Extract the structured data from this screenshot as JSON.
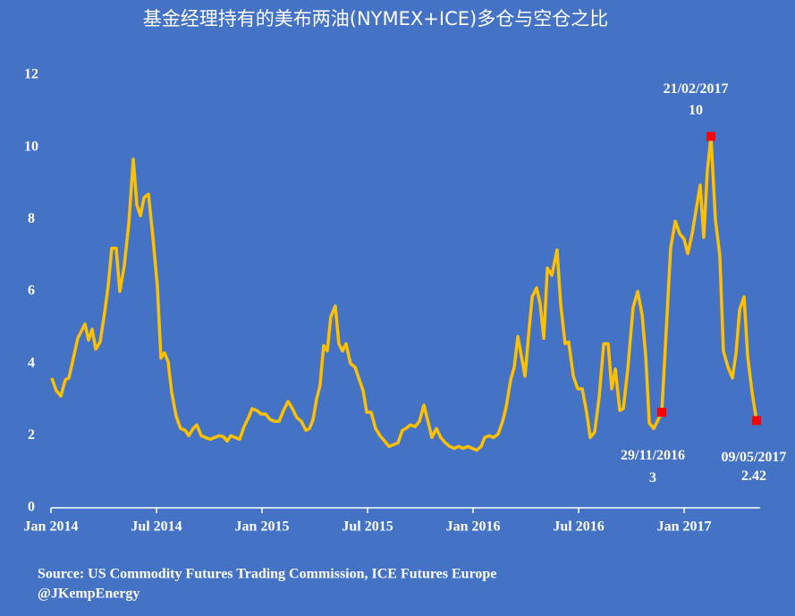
{
  "chart_data": {
    "type": "line",
    "title": "基金经理持有的美布两油(NYMEX+ICE)多仓与空仓之比",
    "source": [
      "Source: US Commodity Futures Trading Commission, ICE Futures Europe",
      "@JKempEnergy"
    ],
    "xlim": [
      2014,
      2017.36
    ],
    "xticks": [
      {
        "value": 2014,
        "label": "Jan 2014"
      },
      {
        "value": 2014.5,
        "label": "Jul 2014"
      },
      {
        "value": 2015,
        "label": "Jan 2015"
      },
      {
        "value": 2015.5,
        "label": "Jul 2015"
      },
      {
        "value": 2016,
        "label": "Jan 2016"
      },
      {
        "value": 2016.5,
        "label": "Jul 2016"
      },
      {
        "value": 2017,
        "label": "Jan 2017"
      }
    ],
    "ylim": [
      0,
      12
    ],
    "yticks": [
      0,
      2,
      4,
      6,
      8,
      10,
      12
    ],
    "series": [
      {
        "color": "#ffc000",
        "x": [
          2014.004,
          2014.025,
          2014.047,
          2014.068,
          2014.085,
          2014.106,
          2014.127,
          2014.144,
          2014.161,
          2014.178,
          2014.195,
          2014.212,
          2014.233,
          2014.254,
          2014.271,
          2014.288,
          2014.309,
          2014.326,
          2014.347,
          2014.369,
          2014.39,
          2014.407,
          2014.424,
          2014.441,
          2014.462,
          2014.483,
          2014.504,
          2014.521,
          2014.538,
          2014.555,
          2014.572,
          2014.593,
          2014.614,
          2014.636,
          2014.653,
          2014.674,
          2014.691,
          2014.712,
          2014.733,
          2014.754,
          2014.775,
          2014.797,
          2014.818,
          2014.835,
          2014.852,
          2014.873,
          2014.894,
          2014.915,
          2014.936,
          2014.953,
          2014.975,
          2014.996,
          2015.017,
          2015.038,
          2015.059,
          2015.081,
          2015.102,
          2015.123,
          2015.144,
          2015.165,
          2015.186,
          2015.208,
          2015.225,
          2015.242,
          2015.258,
          2015.275,
          2015.292,
          2015.309,
          2015.326,
          2015.347,
          2015.364,
          2015.381,
          2015.398,
          2015.419,
          2015.441,
          2015.458,
          2015.479,
          2015.496,
          2015.517,
          2015.538,
          2015.559,
          2015.581,
          2015.602,
          2015.623,
          2015.644,
          2015.665,
          2015.682,
          2015.703,
          2015.725,
          2015.746,
          2015.767,
          2015.784,
          2015.805,
          2015.826,
          2015.847,
          2015.869,
          2015.89,
          2015.911,
          2015.932,
          2015.953,
          2015.975,
          2015.996,
          2016.017,
          2016.038,
          2016.055,
          2016.076,
          2016.097,
          2016.119,
          2016.14,
          2016.157,
          2016.178,
          2016.195,
          2016.212,
          2016.229,
          2016.246,
          2016.263,
          2016.28,
          2016.301,
          2016.318,
          2016.335,
          2016.352,
          2016.373,
          2016.398,
          2016.415,
          2016.436,
          2016.453,
          2016.475,
          2016.496,
          2016.517,
          2016.538,
          2016.555,
          2016.576,
          2016.597,
          2016.619,
          2016.64,
          2016.657,
          2016.674,
          2016.695,
          2016.712,
          2016.733,
          2016.758,
          2016.78,
          2016.801,
          2016.818,
          2016.835,
          2016.856,
          2016.873,
          2016.894,
          2016.915,
          2016.936,
          2016.958,
          2016.979,
          2017.0,
          2017.017,
          2017.038,
          2017.059,
          2017.076,
          2017.093,
          2017.11,
          2017.127,
          2017.148,
          2017.169,
          2017.186,
          2017.208,
          2017.229,
          2017.246,
          2017.263,
          2017.284,
          2017.301,
          2017.322,
          2017.343
        ],
        "values": [
          3.6,
          3.25,
          3.1,
          3.55,
          3.6,
          4.15,
          4.7,
          4.9,
          5.1,
          4.65,
          4.95,
          4.4,
          4.6,
          5.4,
          6.15,
          7.2,
          7.2,
          6.0,
          6.7,
          7.9,
          9.67,
          8.4,
          8.1,
          8.6,
          8.7,
          7.5,
          6.15,
          4.15,
          4.3,
          4.05,
          3.2,
          2.55,
          2.2,
          2.15,
          2.0,
          2.2,
          2.3,
          2.0,
          1.95,
          1.9,
          1.95,
          2.0,
          1.97,
          1.85,
          2.0,
          1.95,
          1.9,
          2.25,
          2.5,
          2.75,
          2.7,
          2.6,
          2.6,
          2.45,
          2.4,
          2.4,
          2.7,
          2.95,
          2.75,
          2.5,
          2.4,
          2.15,
          2.2,
          2.45,
          3.0,
          3.4,
          4.5,
          4.35,
          5.3,
          5.6,
          4.55,
          4.35,
          4.55,
          4.0,
          3.9,
          3.6,
          3.25,
          2.65,
          2.65,
          2.2,
          2.0,
          1.85,
          1.7,
          1.75,
          1.8,
          2.15,
          2.2,
          2.3,
          2.25,
          2.4,
          2.85,
          2.45,
          1.95,
          2.2,
          1.95,
          1.8,
          1.7,
          1.65,
          1.7,
          1.65,
          1.7,
          1.65,
          1.6,
          1.7,
          1.95,
          2.0,
          1.95,
          2.05,
          2.4,
          2.8,
          3.55,
          3.9,
          4.75,
          4.2,
          3.65,
          4.8,
          5.85,
          6.1,
          5.65,
          4.7,
          6.65,
          6.45,
          7.15,
          5.65,
          4.55,
          4.6,
          3.65,
          3.3,
          3.3,
          2.65,
          1.95,
          2.1,
          3.05,
          4.55,
          4.55,
          3.3,
          3.85,
          2.7,
          2.75,
          3.85,
          5.55,
          6.0,
          5.35,
          4.2,
          2.35,
          2.2,
          2.4,
          2.65,
          4.9,
          7.2,
          7.95,
          7.6,
          7.45,
          7.05,
          7.6,
          8.35,
          8.95,
          7.5,
          9.35,
          10.3,
          8.0,
          7.0,
          4.35,
          3.9,
          3.6,
          4.3,
          5.5,
          5.85,
          4.2,
          3.2,
          2.42
        ]
      }
    ],
    "annotations": [
      {
        "x": 2016.894,
        "value": 2.65,
        "date": "29/11/2016",
        "value_label": "3",
        "color": "#ff0000"
      },
      {
        "x": 2017.127,
        "value": 10.3,
        "date": "21/02/2017",
        "value_label": "10",
        "color": "#ff0000"
      },
      {
        "x": 2017.343,
        "value": 2.42,
        "date": "09/05/2017",
        "value_label": "2.42",
        "color": "#ff0000"
      }
    ]
  }
}
